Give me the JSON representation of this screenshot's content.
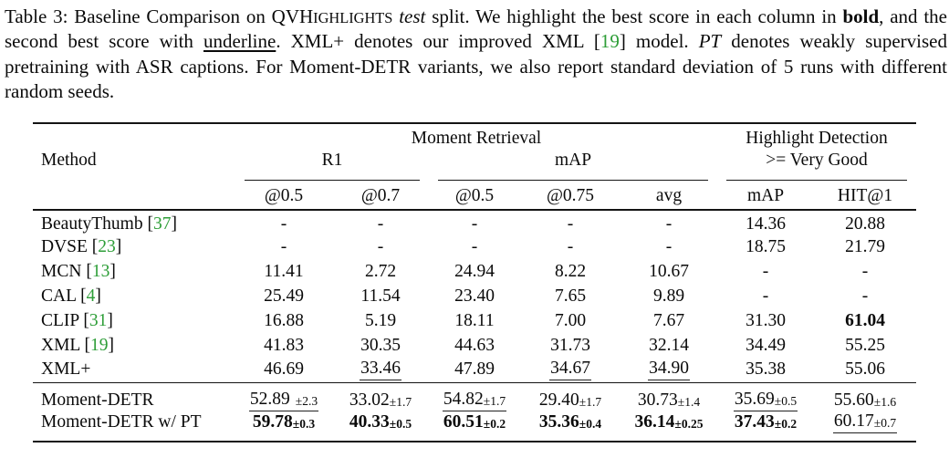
{
  "colors": {
    "citation_green": "#2E9E38",
    "text": "#0A0A0A",
    "rule": "#141414"
  },
  "caption": {
    "segments": [
      {
        "t": "Table 3: Baseline Comparison on ",
        "s": "plain"
      },
      {
        "t": "QVH",
        "s": "plain"
      },
      {
        "t": "IGHLIGHTS",
        "s": "smallcaps"
      },
      {
        "t": " ",
        "s": "plain"
      },
      {
        "t": "test",
        "s": "italic"
      },
      {
        "t": " split. We highlight the best score in each column in ",
        "s": "plain"
      },
      {
        "t": "bold",
        "s": "bold"
      },
      {
        "t": ", and the second best score with ",
        "s": "plain"
      },
      {
        "t": "underline",
        "s": "underline"
      },
      {
        "t": ". XML+ denotes our improved XML [",
        "s": "plain"
      },
      {
        "t": "19",
        "s": "cite"
      },
      {
        "t": "] model. ",
        "s": "plain"
      },
      {
        "t": "PT",
        "s": "italic"
      },
      {
        "t": " denotes weakly supervised pretraining with ASR captions. For Moment-DETR variants, we also report standard deviation of 5 runs with different random seeds.",
        "s": "plain"
      }
    ]
  },
  "table": {
    "header": {
      "method": "Method",
      "groups": [
        {
          "label": "Moment Retrieval"
        },
        {
          "label": "Highlight Detection"
        }
      ],
      "subgroups": [
        {
          "label": "R1"
        },
        {
          "label": "mAP"
        },
        {
          "label": ">= Very Good"
        }
      ],
      "cols": [
        "@0.5",
        "@0.7",
        "@0.5",
        "@0.75",
        "avg",
        "mAP",
        "HIT@1"
      ]
    },
    "rows": [
      {
        "method": "BeautyThumb",
        "cite": "37",
        "cells": [
          {
            "v": "-"
          },
          {
            "v": "-"
          },
          {
            "v": "-"
          },
          {
            "v": "-"
          },
          {
            "v": "-"
          },
          {
            "v": "14.36"
          },
          {
            "v": "20.88"
          }
        ]
      },
      {
        "method": "DVSE",
        "cite": "23",
        "cells": [
          {
            "v": "-"
          },
          {
            "v": "-"
          },
          {
            "v": "-"
          },
          {
            "v": "-"
          },
          {
            "v": "-"
          },
          {
            "v": "18.75"
          },
          {
            "v": "21.79"
          }
        ]
      },
      {
        "method": "MCN",
        "cite": "13",
        "cells": [
          {
            "v": "11.41"
          },
          {
            "v": "2.72"
          },
          {
            "v": "24.94"
          },
          {
            "v": "8.22"
          },
          {
            "v": "10.67"
          },
          {
            "v": "-"
          },
          {
            "v": "-"
          }
        ]
      },
      {
        "method": "CAL",
        "cite": "4",
        "cells": [
          {
            "v": "25.49"
          },
          {
            "v": "11.54"
          },
          {
            "v": "23.40"
          },
          {
            "v": "7.65"
          },
          {
            "v": "9.89"
          },
          {
            "v": "-"
          },
          {
            "v": "-"
          }
        ]
      },
      {
        "method": "CLIP",
        "cite": "31",
        "cells": [
          {
            "v": "16.88"
          },
          {
            "v": "5.19"
          },
          {
            "v": "18.11"
          },
          {
            "v": "7.00"
          },
          {
            "v": "7.67"
          },
          {
            "v": "31.30"
          },
          {
            "v": "61.04",
            "style": "bold"
          }
        ]
      },
      {
        "method": "XML",
        "cite": "19",
        "cells": [
          {
            "v": "41.83"
          },
          {
            "v": "30.35"
          },
          {
            "v": "44.63"
          },
          {
            "v": "31.73"
          },
          {
            "v": "32.14"
          },
          {
            "v": "34.49"
          },
          {
            "v": "55.25"
          }
        ]
      },
      {
        "method": "XML+",
        "cite": null,
        "cells": [
          {
            "v": "46.69"
          },
          {
            "v": "33.46",
            "style": "underline"
          },
          {
            "v": "47.89"
          },
          {
            "v": "34.67",
            "style": "underline"
          },
          {
            "v": "34.90",
            "style": "underline"
          },
          {
            "v": "35.38"
          },
          {
            "v": "55.06"
          }
        ]
      }
    ],
    "detr_rows": [
      {
        "method": "Moment-DETR",
        "cite": null,
        "cells": [
          {
            "v": "52.89",
            "pm": "2.3",
            "style": "underline",
            "gap": true
          },
          {
            "v": "33.02",
            "pm": "1.7"
          },
          {
            "v": "54.82",
            "pm": "1.7",
            "style": "underline"
          },
          {
            "v": "29.40",
            "pm": "1.7"
          },
          {
            "v": "30.73",
            "pm": "1.4"
          },
          {
            "v": "35.69",
            "pm": "0.5",
            "style": "underline"
          },
          {
            "v": "55.60",
            "pm": "1.6"
          }
        ]
      },
      {
        "method": "Moment-DETR w/ PT",
        "cite": null,
        "cells": [
          {
            "v": "59.78",
            "pm": "0.3",
            "style": "bold"
          },
          {
            "v": "40.33",
            "pm": "0.5",
            "style": "bold"
          },
          {
            "v": "60.51",
            "pm": "0.2",
            "style": "bold"
          },
          {
            "v": "35.36",
            "pm": "0.4",
            "style": "bold"
          },
          {
            "v": "36.14",
            "pm": "0.25",
            "style": "bold"
          },
          {
            "v": "37.43",
            "pm": "0.2",
            "style": "bold"
          },
          {
            "v": "60.17",
            "pm": "0.7",
            "style": "underline"
          }
        ]
      }
    ]
  }
}
